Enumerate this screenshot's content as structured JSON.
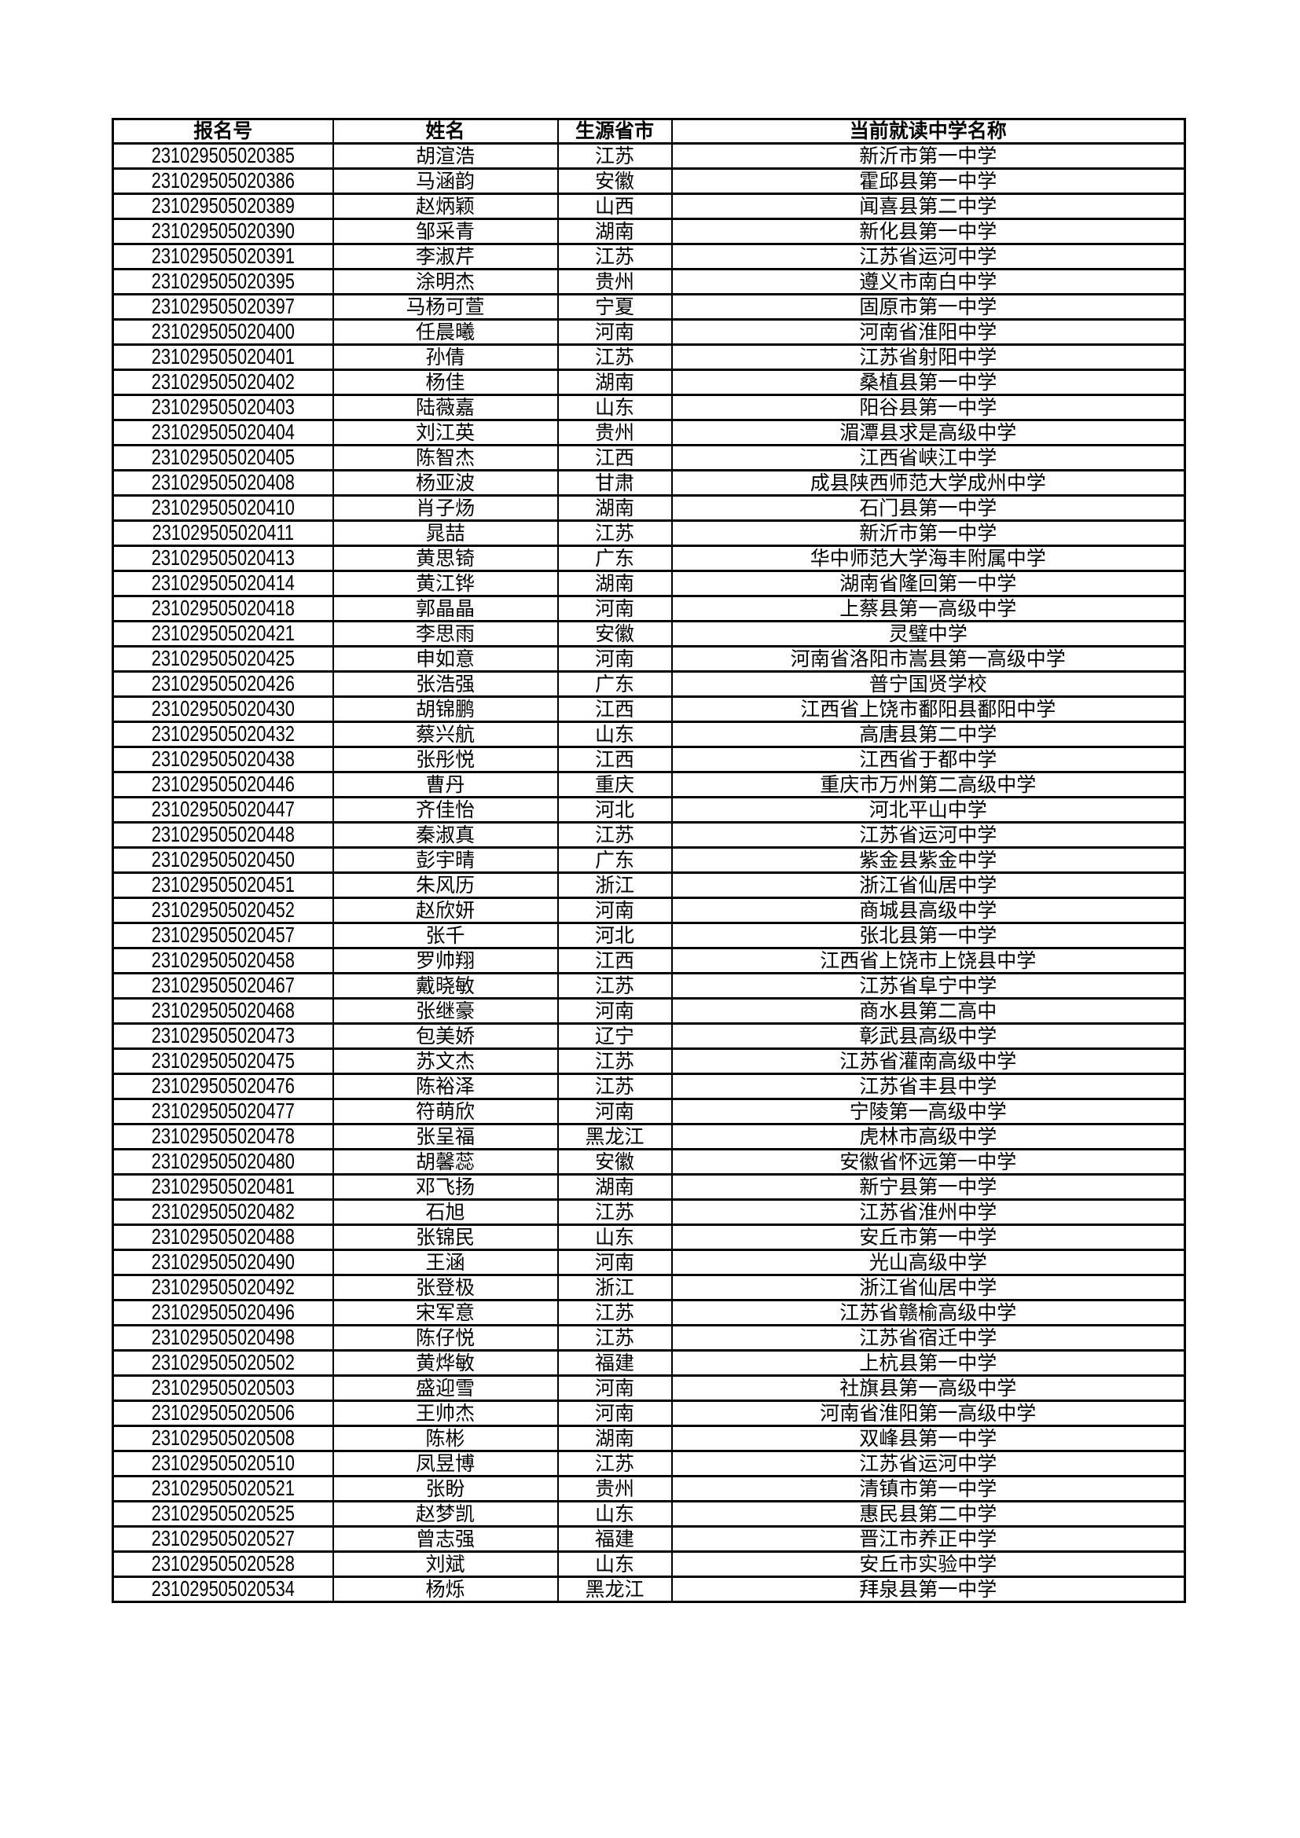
{
  "headers": [
    "报名号",
    "姓名",
    "生源省市",
    "当前就读中学名称"
  ],
  "rows": [
    [
      "231029505020385",
      "胡渲浩",
      "江苏",
      "新沂市第一中学"
    ],
    [
      "231029505020386",
      "马涵韵",
      "安徽",
      "霍邱县第一中学"
    ],
    [
      "231029505020389",
      "赵炳颖",
      "山西",
      "闻喜县第二中学"
    ],
    [
      "231029505020390",
      "邹采青",
      "湖南",
      "新化县第一中学"
    ],
    [
      "231029505020391",
      "李淑芹",
      "江苏",
      "江苏省运河中学"
    ],
    [
      "231029505020395",
      "涂明杰",
      "贵州",
      "遵义市南白中学"
    ],
    [
      "231029505020397",
      "马杨可萱",
      "宁夏",
      "固原市第一中学"
    ],
    [
      "231029505020400",
      "任晨曦",
      "河南",
      "河南省淮阳中学"
    ],
    [
      "231029505020401",
      "孙倩",
      "江苏",
      "江苏省射阳中学"
    ],
    [
      "231029505020402",
      "杨佳",
      "湖南",
      "桑植县第一中学"
    ],
    [
      "231029505020403",
      "陆薇嘉",
      "山东",
      "阳谷县第一中学"
    ],
    [
      "231029505020404",
      "刘江英",
      "贵州",
      "湄潭县求是高级中学"
    ],
    [
      "231029505020405",
      "陈智杰",
      "江西",
      "江西省峡江中学"
    ],
    [
      "231029505020408",
      "杨亚波",
      "甘肃",
      "成县陕西师范大学成州中学"
    ],
    [
      "231029505020410",
      "肖子炀",
      "湖南",
      "石门县第一中学"
    ],
    [
      "231029505020411",
      "晁喆",
      "江苏",
      "新沂市第一中学"
    ],
    [
      "231029505020413",
      "黄思锜",
      "广东",
      "华中师范大学海丰附属中学"
    ],
    [
      "231029505020414",
      "黄江铧",
      "湖南",
      "湖南省隆回第一中学"
    ],
    [
      "231029505020418",
      "郭晶晶",
      "河南",
      "上蔡县第一高级中学"
    ],
    [
      "231029505020421",
      "李思雨",
      "安徽",
      "灵璧中学"
    ],
    [
      "231029505020425",
      "申如意",
      "河南",
      "河南省洛阳市嵩县第一高级中学"
    ],
    [
      "231029505020426",
      "张浩强",
      "广东",
      "普宁国贤学校"
    ],
    [
      "231029505020430",
      "胡锦鹏",
      "江西",
      "江西省上饶市鄱阳县鄱阳中学"
    ],
    [
      "231029505020432",
      "蔡兴航",
      "山东",
      "高唐县第二中学"
    ],
    [
      "231029505020438",
      "张彤悦",
      "江西",
      "江西省于都中学"
    ],
    [
      "231029505020446",
      "曹丹",
      "重庆",
      "重庆市万州第二高级中学"
    ],
    [
      "231029505020447",
      "齐佳怡",
      "河北",
      "河北平山中学"
    ],
    [
      "231029505020448",
      "秦淑真",
      "江苏",
      "江苏省运河中学"
    ],
    [
      "231029505020450",
      "彭宇晴",
      "广东",
      "紫金县紫金中学"
    ],
    [
      "231029505020451",
      "朱风历",
      "浙江",
      "浙江省仙居中学"
    ],
    [
      "231029505020452",
      "赵欣妍",
      "河南",
      "商城县高级中学"
    ],
    [
      "231029505020457",
      "张千",
      "河北",
      "张北县第一中学"
    ],
    [
      "231029505020458",
      "罗帅翔",
      "江西",
      "江西省上饶市上饶县中学"
    ],
    [
      "231029505020467",
      "戴晓敏",
      "江苏",
      "江苏省阜宁中学"
    ],
    [
      "231029505020468",
      "张继豪",
      "河南",
      "商水县第二高中"
    ],
    [
      "231029505020473",
      "包美娇",
      "辽宁",
      "彰武县高级中学"
    ],
    [
      "231029505020475",
      "苏文杰",
      "江苏",
      "江苏省灌南高级中学"
    ],
    [
      "231029505020476",
      "陈裕泽",
      "江苏",
      "江苏省丰县中学"
    ],
    [
      "231029505020477",
      "符萌欣",
      "河南",
      "宁陵第一高级中学"
    ],
    [
      "231029505020478",
      "张呈福",
      "黑龙江",
      "虎林市高级中学"
    ],
    [
      "231029505020480",
      "胡馨蕊",
      "安徽",
      "安徽省怀远第一中学"
    ],
    [
      "231029505020481",
      "邓飞扬",
      "湖南",
      "新宁县第一中学"
    ],
    [
      "231029505020482",
      "石旭",
      "江苏",
      "江苏省淮州中学"
    ],
    [
      "231029505020488",
      "张锦民",
      "山东",
      "安丘市第一中学"
    ],
    [
      "231029505020490",
      "王涵",
      "河南",
      "光山高级中学"
    ],
    [
      "231029505020492",
      "张登极",
      "浙江",
      "浙江省仙居中学"
    ],
    [
      "231029505020496",
      "宋军意",
      "江苏",
      "江苏省赣榆高级中学"
    ],
    [
      "231029505020498",
      "陈仔悦",
      "江苏",
      "江苏省宿迁中学"
    ],
    [
      "231029505020502",
      "黄烨敏",
      "福建",
      "上杭县第一中学"
    ],
    [
      "231029505020503",
      "盛迎雪",
      "河南",
      "社旗县第一高级中学"
    ],
    [
      "231029505020506",
      "王帅杰",
      "河南",
      "河南省淮阳第一高级中学"
    ],
    [
      "231029505020508",
      "陈彬",
      "湖南",
      "双峰县第一中学"
    ],
    [
      "231029505020510",
      "凤昱博",
      "江苏",
      "江苏省运河中学"
    ],
    [
      "231029505020521",
      "张盼",
      "贵州",
      "清镇市第一中学"
    ],
    [
      "231029505020525",
      "赵梦凯",
      "山东",
      "惠民县第二中学"
    ],
    [
      "231029505020527",
      "曾志强",
      "福建",
      "晋江市养正中学"
    ],
    [
      "231029505020528",
      "刘斌",
      "山东",
      "安丘市实验中学"
    ],
    [
      "231029505020534",
      "杨烁",
      "黑龙江",
      "拜泉县第一中学"
    ]
  ]
}
